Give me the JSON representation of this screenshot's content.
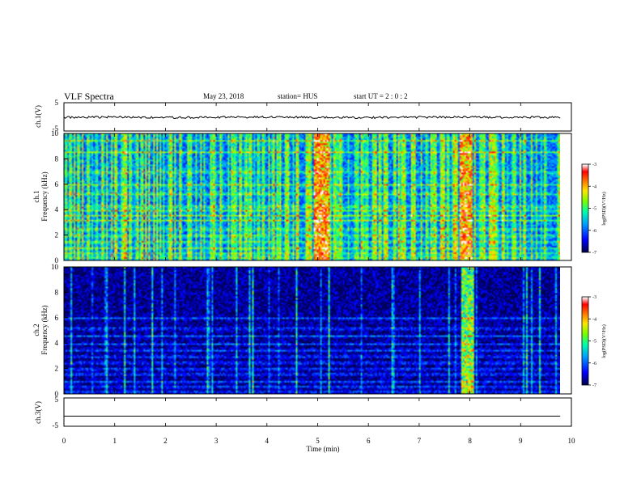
{
  "header": {
    "title": "VLF Spectra",
    "date": "May 23, 2018",
    "station": "station= HUS",
    "start": "start  UT  =   2 : 0  : 2"
  },
  "colors": {
    "spectrogram_scale": [
      "#000066",
      "#0000ff",
      "#00b4ff",
      "#00ff96",
      "#96ff00",
      "#ffe600",
      "#ff6400",
      "#ff0000",
      "#ffffff"
    ],
    "trace": "#000000",
    "frame": "#000000"
  },
  "chart_data": [
    {
      "type": "line",
      "title": "",
      "ylabel": "ch.1(V)",
      "xlabel": "",
      "xlim": [
        0,
        10
      ],
      "ylim": [
        -5,
        5
      ],
      "y_ticks": [
        "5",
        "-5"
      ],
      "series": [
        {
          "description_free": true,
          "values": [
            -0.3,
            -0.2,
            -0.4,
            -0.3,
            -0.2,
            -0.3,
            -0.4,
            -0.3,
            -0.2,
            -0.3,
            -0.3
          ]
        }
      ]
    },
    {
      "type": "heatmap",
      "ylabel": "ch.1\nFrequency (kHz)",
      "xlim": [
        0,
        10
      ],
      "ylim": [
        0,
        10
      ],
      "y_ticks": [
        "0",
        "2",
        "4",
        "6",
        "8",
        "10"
      ],
      "colorbar": {
        "label": "log(PSD)(V²/Hz)",
        "ticks": [
          "-3",
          "-4",
          "-5",
          "-6",
          "-7"
        ],
        "range": [
          -7,
          -3
        ]
      },
      "background_level": -5.9,
      "bands_khz": [
        0.3,
        0.6,
        1.0,
        1.5,
        2.0,
        2.5,
        3.2,
        3.6,
        4.0,
        4.3,
        5.3,
        6.0,
        7.0,
        8.6,
        9.5
      ],
      "bursts_min": [
        5.1,
        5.15,
        5.2,
        5.25,
        8.05,
        8.1,
        8.15
      ]
    },
    {
      "type": "heatmap",
      "ylabel": "ch.2\nFrequency (kHz)",
      "xlim": [
        0,
        10
      ],
      "ylim": [
        0,
        10
      ],
      "y_ticks": [
        "0",
        "2",
        "4",
        "6",
        "8",
        "10"
      ],
      "colorbar": {
        "label": "log(PSD)(V²/Hz)",
        "ticks": [
          "-3",
          "-4",
          "-5",
          "-6",
          "-7"
        ],
        "range": [
          -7,
          -3
        ]
      },
      "background_level": -6.8,
      "bands_khz": [
        0.2,
        0.6,
        1.0,
        1.6,
        2.0,
        2.5,
        3.0,
        3.5,
        4.0,
        4.6,
        5.2,
        6.0
      ],
      "bursts_min": [
        8.07,
        8.12,
        8.17
      ]
    },
    {
      "type": "line",
      "ylabel": "ch.3(V)",
      "xlabel": "Time  (min)",
      "xlim": [
        0,
        10
      ],
      "ylim": [
        -5,
        5
      ],
      "y_ticks": [
        "5",
        "-5"
      ],
      "x_ticks": [
        "0",
        "1",
        "2",
        "3",
        "4",
        "5",
        "6",
        "7",
        "8",
        "9",
        "10"
      ],
      "series": [
        {
          "values": [
            -1.3,
            -1.3,
            -1.3,
            -1.3,
            -1.3,
            -1.3,
            -1.3,
            -1.3,
            -1.3,
            -1.3,
            -1.3
          ]
        }
      ]
    }
  ]
}
